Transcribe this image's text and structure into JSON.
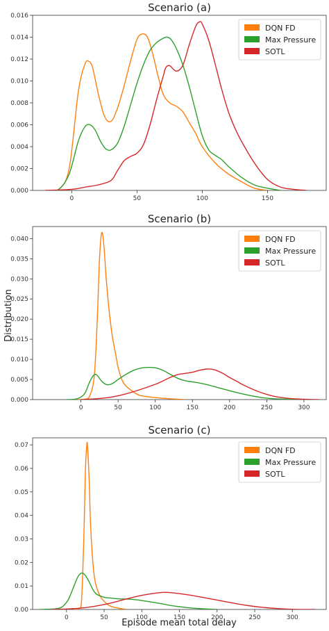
{
  "figure": {
    "ylabel": "Distribution",
    "xlabel": "Episode mean total delay"
  },
  "colors": {
    "DQN FD": "#ff7f0e",
    "Max Pressure": "#2ca02c",
    "SOTL": "#d62728"
  },
  "chart_data": [
    {
      "type": "line",
      "title": "Scenario (a)",
      "xlim": [
        -30,
        195
      ],
      "ylim": [
        0,
        0.016
      ],
      "xticks": [
        0,
        50,
        100,
        150
      ],
      "yticks": [
        0.0,
        0.002,
        0.004,
        0.006,
        0.008,
        0.01,
        0.012,
        0.014,
        0.016
      ],
      "ytick_labels": [
        "0.000",
        "0.002",
        "0.004",
        "0.006",
        "0.008",
        "0.010",
        "0.012",
        "0.014",
        "0.016"
      ],
      "legend": "top-right",
      "series": [
        {
          "name": "DQN FD",
          "color": "#ff7f0e",
          "x": [
            -20,
            -10,
            -2,
            5,
            10,
            13,
            16,
            20,
            25,
            30,
            35,
            40,
            45,
            50,
            54,
            58,
            62,
            66,
            70,
            75,
            80,
            85,
            90,
            95,
            100,
            110,
            120,
            130,
            140,
            150
          ],
          "y": [
            0,
            0.0001,
            0.002,
            0.009,
            0.0115,
            0.0118,
            0.0112,
            0.009,
            0.0068,
            0.0063,
            0.0075,
            0.0095,
            0.0118,
            0.0138,
            0.0143,
            0.014,
            0.0125,
            0.0105,
            0.0088,
            0.008,
            0.0077,
            0.0072,
            0.0062,
            0.0052,
            0.004,
            0.0025,
            0.0015,
            0.0008,
            0.0002,
            0
          ]
        },
        {
          "name": "Max Pressure",
          "color": "#2ca02c",
          "x": [
            -20,
            -10,
            -2,
            5,
            10,
            14,
            18,
            22,
            26,
            30,
            35,
            40,
            45,
            50,
            55,
            60,
            65,
            70,
            73,
            76,
            80,
            85,
            90,
            95,
            100,
            105,
            110,
            115,
            120,
            130,
            140,
            150,
            160
          ],
          "y": [
            0,
            0.0001,
            0.0015,
            0.0045,
            0.0058,
            0.006,
            0.0055,
            0.0045,
            0.0038,
            0.0037,
            0.0043,
            0.0058,
            0.0078,
            0.0098,
            0.0115,
            0.0128,
            0.0135,
            0.0139,
            0.014,
            0.0138,
            0.013,
            0.0115,
            0.0095,
            0.0072,
            0.005,
            0.0037,
            0.0032,
            0.0028,
            0.0022,
            0.0012,
            0.0005,
            0.0002,
            0
          ]
        },
        {
          "name": "SOTL",
          "color": "#d62728",
          "x": [
            -20,
            0,
            10,
            20,
            30,
            35,
            40,
            45,
            50,
            55,
            60,
            65,
            70,
            72,
            75,
            80,
            85,
            90,
            95,
            98,
            100,
            105,
            110,
            115,
            120,
            125,
            130,
            140,
            150,
            160,
            170,
            180
          ],
          "y": [
            0,
            0.0001,
            0.0003,
            0.0005,
            0.0009,
            0.0018,
            0.0027,
            0.0031,
            0.0034,
            0.0042,
            0.006,
            0.0083,
            0.0104,
            0.0112,
            0.0114,
            0.0109,
            0.0114,
            0.0133,
            0.015,
            0.0154,
            0.0152,
            0.0137,
            0.0115,
            0.0092,
            0.0072,
            0.0057,
            0.0045,
            0.0025,
            0.001,
            0.0003,
            0.0001,
            0
          ]
        }
      ]
    },
    {
      "type": "line",
      "title": "Scenario (b)",
      "xlim": [
        -65,
        330
      ],
      "ylim": [
        0,
        0.043
      ],
      "xticks": [
        0,
        50,
        100,
        150,
        200,
        250,
        300
      ],
      "yticks": [
        0.0,
        0.005,
        0.01,
        0.015,
        0.02,
        0.025,
        0.03,
        0.035,
        0.04
      ],
      "ytick_labels": [
        "0.000",
        "0.005",
        "0.010",
        "0.015",
        "0.020",
        "0.025",
        "0.030",
        "0.035",
        "0.040"
      ],
      "legend": "top-right",
      "series": [
        {
          "name": "DQN FD",
          "color": "#ff7f0e",
          "x": [
            -10,
            5,
            12,
            18,
            22,
            25,
            28,
            31,
            34,
            38,
            42,
            46,
            50,
            55,
            60,
            70,
            80,
            100,
            120,
            140
          ],
          "y": [
            0,
            0.0001,
            0.001,
            0.006,
            0.02,
            0.035,
            0.0415,
            0.038,
            0.03,
            0.022,
            0.016,
            0.012,
            0.008,
            0.005,
            0.0035,
            0.002,
            0.001,
            0.0005,
            0.0002,
            0
          ]
        },
        {
          "name": "Max Pressure",
          "color": "#2ca02c",
          "x": [
            -20,
            -5,
            5,
            12,
            18,
            22,
            26,
            30,
            35,
            40,
            45,
            50,
            60,
            70,
            80,
            90,
            100,
            110,
            120,
            130,
            140,
            150,
            160,
            170,
            180,
            200,
            220,
            240,
            260,
            280,
            300
          ],
          "y": [
            0,
            0.0002,
            0.0015,
            0.0045,
            0.0062,
            0.006,
            0.005,
            0.0042,
            0.0037,
            0.0038,
            0.0043,
            0.005,
            0.0062,
            0.0072,
            0.0078,
            0.008,
            0.0079,
            0.0073,
            0.0063,
            0.0053,
            0.0047,
            0.0044,
            0.0041,
            0.0037,
            0.0032,
            0.0022,
            0.0013,
            0.0006,
            0.0002,
            0.0001,
            0
          ]
        },
        {
          "name": "SOTL",
          "color": "#d62728",
          "x": [
            0,
            20,
            40,
            60,
            80,
            100,
            110,
            120,
            130,
            140,
            150,
            160,
            170,
            180,
            190,
            200,
            210,
            220,
            240,
            260,
            280,
            300,
            320
          ],
          "y": [
            0,
            0.0002,
            0.0006,
            0.0014,
            0.0025,
            0.0038,
            0.0046,
            0.0055,
            0.0062,
            0.0065,
            0.0068,
            0.0073,
            0.0076,
            0.0074,
            0.0066,
            0.0055,
            0.0045,
            0.0035,
            0.0019,
            0.0008,
            0.0003,
            0.0001,
            0
          ]
        }
      ]
    },
    {
      "type": "line",
      "title": "Scenario (c)",
      "xlim": [
        -45,
        345
      ],
      "ylim": [
        0,
        0.073
      ],
      "xticks": [
        0,
        50,
        100,
        150,
        200,
        250,
        300
      ],
      "yticks": [
        0.0,
        0.01,
        0.02,
        0.03,
        0.04,
        0.05,
        0.06,
        0.07
      ],
      "ytick_labels": [
        "0.00",
        "0.01",
        "0.02",
        "0.03",
        "0.04",
        "0.05",
        "0.06",
        "0.07"
      ],
      "legend": "top-right",
      "series": [
        {
          "name": "DQN FD",
          "color": "#ff7f0e",
          "x": [
            10,
            17,
            20,
            23,
            25,
            27,
            28,
            30,
            32,
            35,
            38,
            42,
            46,
            50,
            55,
            60,
            70,
            80
          ],
          "y": [
            0,
            0.0005,
            0.004,
            0.03,
            0.058,
            0.07,
            0.069,
            0.056,
            0.036,
            0.02,
            0.012,
            0.0075,
            0.005,
            0.0035,
            0.002,
            0.0012,
            0.0005,
            0
          ]
        },
        {
          "name": "Max Pressure",
          "color": "#2ca02c",
          "x": [
            -35,
            -10,
            0,
            5,
            10,
            15,
            20,
            25,
            30,
            35,
            40,
            50,
            60,
            70,
            80,
            90,
            100,
            120,
            140,
            160,
            180,
            200
          ],
          "y": [
            0,
            0.0005,
            0.003,
            0.006,
            0.01,
            0.0138,
            0.0155,
            0.0145,
            0.0118,
            0.0085,
            0.0065,
            0.0052,
            0.0048,
            0.0045,
            0.0044,
            0.0042,
            0.0038,
            0.0028,
            0.0016,
            0.0008,
            0.0003,
            0
          ]
        },
        {
          "name": "SOTL",
          "color": "#d62728",
          "x": [
            -20,
            0,
            20,
            40,
            60,
            80,
            100,
            120,
            130,
            140,
            160,
            180,
            200,
            220,
            240,
            260,
            280,
            300,
            330
          ],
          "y": [
            0,
            0.0002,
            0.0006,
            0.0015,
            0.0028,
            0.0045,
            0.006,
            0.007,
            0.0073,
            0.0071,
            0.0063,
            0.0052,
            0.004,
            0.0028,
            0.0017,
            0.0009,
            0.0004,
            0.0001,
            0
          ]
        }
      ]
    }
  ]
}
